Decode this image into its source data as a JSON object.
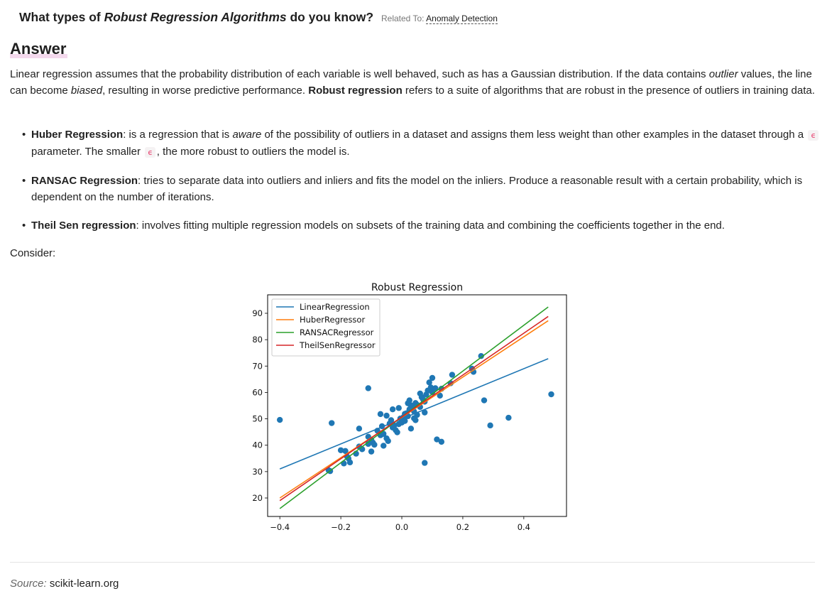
{
  "question": {
    "prefix": "What types of ",
    "emph": "Robust Regression Algorithms",
    "suffix": " do you know?",
    "related_label": "Related To:",
    "related_link": "Anomaly Detection"
  },
  "answer_heading": "Answer",
  "intro": {
    "t1": "Linear regression assumes that the probability distribution of each variable is well behaved, such as has a Gaussian distribution. If the data contains ",
    "outlier": "outlier",
    "t2": " values, the line can become ",
    "biased": "biased",
    "t3": ", resulting in worse predictive performance. ",
    "robust": "Robust regression",
    "t4": " refers to a suite of algorithms that are robust in the presence of outliers in training data."
  },
  "items": [
    {
      "name": "Huber Regression",
      "t1": ": is a regression that is ",
      "aware": "aware",
      "t2": " of the possibility of outliers in a dataset and assigns them less weight than other examples in the dataset through a ",
      "eps": "ϵ",
      "t3": " parameter. The smaller ",
      "eps2": "ϵ",
      "t4": ", the more robust to outliers the model is."
    },
    {
      "name": "RANSAC Regression",
      "text": ": tries to separate data into outliers and inliers and fits the model on the inliers. Produce a reasonable result with a certain probability, which is dependent on the number of iterations."
    },
    {
      "name": "Theil Sen regression",
      "text": ": involves fitting multiple regression models on subsets of the training data and combining the coefficients together in the end."
    }
  ],
  "consider": "Consider:",
  "source": {
    "label": "Source:",
    "value": "scikit-learn.org"
  },
  "chart_data": {
    "type": "scatter",
    "title": "Robust Regression",
    "xlabel": "",
    "ylabel": "",
    "xlim": [
      -0.44,
      0.54
    ],
    "ylim": [
      13,
      97
    ],
    "xticks": [
      -0.4,
      -0.2,
      0.0,
      0.2,
      0.4
    ],
    "xtick_labels": [
      "−0.4",
      "−0.2",
      "0.0",
      "0.2",
      "0.4"
    ],
    "yticks": [
      20,
      30,
      40,
      50,
      60,
      70,
      80,
      90
    ],
    "grid": false,
    "legend_position": "top-left",
    "point_color": "#1f77b4",
    "points": [
      [
        -0.4,
        49.6
      ],
      [
        -0.23,
        48.4
      ],
      [
        -0.11,
        61.6
      ],
      [
        0.49,
        59.3
      ],
      [
        0.35,
        50.4
      ],
      [
        0.29,
        47.5
      ],
      [
        0.27,
        57.0
      ],
      [
        0.26,
        73.8
      ],
      [
        0.23,
        69.0
      ],
      [
        0.235,
        67.8
      ],
      [
        0.165,
        66.7
      ],
      [
        0.16,
        63.5
      ],
      [
        0.13,
        41.3
      ],
      [
        0.115,
        42.2
      ],
      [
        0.075,
        33.3
      ],
      [
        -0.24,
        30.5
      ],
      [
        -0.235,
        30.2
      ],
      [
        -0.2,
        38.1
      ],
      [
        -0.185,
        37.8
      ],
      [
        -0.18,
        35.8
      ],
      [
        -0.175,
        35.0
      ],
      [
        -0.19,
        33.1
      ],
      [
        -0.17,
        33.5
      ],
      [
        -0.15,
        36.8
      ],
      [
        -0.14,
        39.5
      ],
      [
        -0.13,
        38.5
      ],
      [
        -0.14,
        46.3
      ],
      [
        -0.11,
        43.2
      ],
      [
        -0.1,
        42.0
      ],
      [
        -0.11,
        40.5
      ],
      [
        -0.095,
        41.0
      ],
      [
        -0.09,
        40.2
      ],
      [
        -0.1,
        37.6
      ],
      [
        -0.08,
        45.5
      ],
      [
        -0.07,
        43.8
      ],
      [
        -0.065,
        47.2
      ],
      [
        -0.06,
        44.3
      ],
      [
        -0.06,
        39.8
      ],
      [
        -0.05,
        42.6
      ],
      [
        -0.045,
        41.6
      ],
      [
        -0.07,
        51.8
      ],
      [
        -0.05,
        51.2
      ],
      [
        -0.035,
        49.5
      ],
      [
        -0.04,
        48.2
      ],
      [
        -0.03,
        46.7
      ],
      [
        -0.025,
        47.5
      ],
      [
        -0.02,
        45.7
      ],
      [
        -0.015,
        44.9
      ],
      [
        -0.01,
        48.0
      ],
      [
        0.0,
        48.6
      ],
      [
        -0.005,
        50.1
      ],
      [
        0.005,
        50.6
      ],
      [
        0.01,
        49.2
      ],
      [
        0.02,
        51.0
      ],
      [
        0.015,
        52.1
      ],
      [
        -0.03,
        53.6
      ],
      [
        -0.01,
        54.1
      ],
      [
        0.025,
        53.6
      ],
      [
        0.03,
        55.1
      ],
      [
        0.02,
        55.9
      ],
      [
        0.035,
        54.4
      ],
      [
        0.04,
        52.8
      ],
      [
        0.045,
        56.0
      ],
      [
        0.05,
        55.3
      ],
      [
        0.03,
        46.3
      ],
      [
        0.04,
        50.2
      ],
      [
        0.045,
        49.5
      ],
      [
        0.06,
        59.6
      ],
      [
        0.065,
        58.2
      ],
      [
        0.07,
        57.3
      ],
      [
        0.075,
        56.5
      ],
      [
        0.08,
        59.2
      ],
      [
        0.085,
        60.7
      ],
      [
        0.09,
        63.8
      ],
      [
        0.095,
        61.9
      ],
      [
        0.1,
        65.5
      ],
      [
        0.1,
        60.1
      ],
      [
        0.11,
        61.6
      ],
      [
        0.13,
        61.4
      ],
      [
        0.125,
        58.8
      ],
      [
        0.075,
        52.4
      ],
      [
        0.025,
        57.0
      ],
      [
        0.06,
        54.5
      ],
      [
        0.05,
        51.5
      ],
      [
        0.01,
        51.9
      ]
    ],
    "series": [
      {
        "name": "LinearRegression",
        "color": "#1f77b4",
        "x": [
          -0.4,
          0.48
        ],
        "y": [
          31.0,
          72.8
        ]
      },
      {
        "name": "HuberRegressor",
        "color": "#ff7f0e",
        "x": [
          -0.4,
          0.48
        ],
        "y": [
          20.0,
          87.2
        ]
      },
      {
        "name": "RANSACRegressor",
        "color": "#2ca02c",
        "x": [
          -0.4,
          0.48
        ],
        "y": [
          16.0,
          92.4
        ]
      },
      {
        "name": "TheilSenRegressor",
        "color": "#d62728",
        "x": [
          -0.4,
          0.48
        ],
        "y": [
          19.0,
          88.8
        ]
      }
    ]
  }
}
